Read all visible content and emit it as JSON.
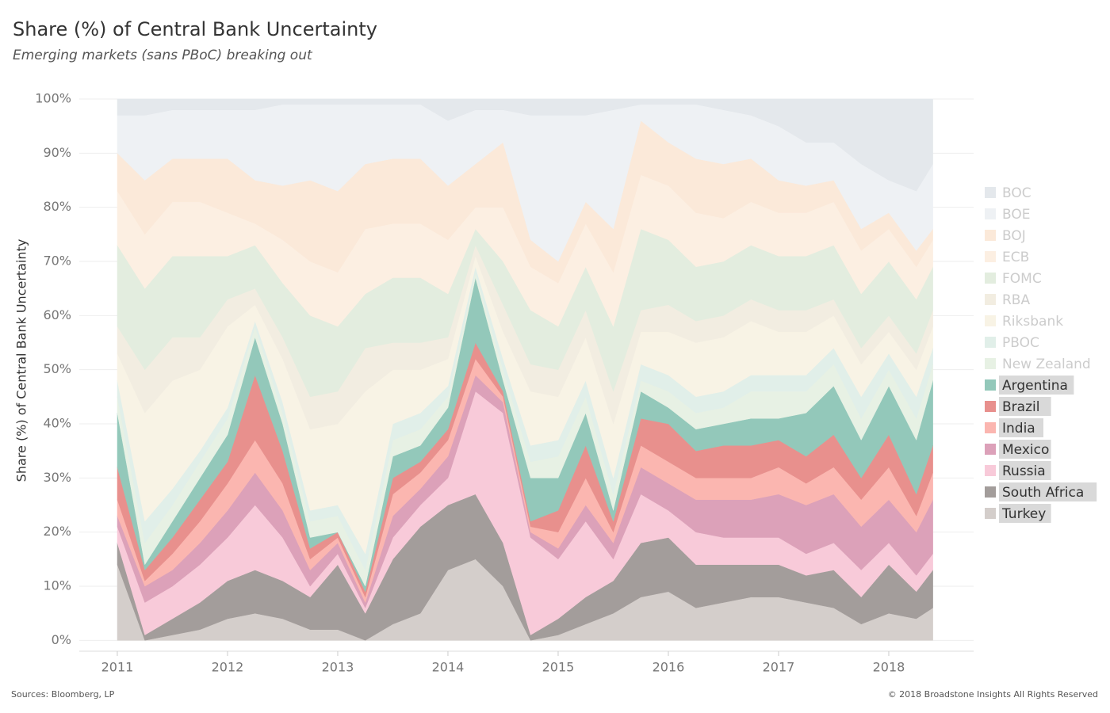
{
  "chart_data": {
    "type": "stacked_area",
    "title": "Share (%) of Central Bank Uncertainty",
    "subtitle": "Emerging markets (sans PBoC) breaking out",
    "y_label": "Share (%) of Central Bank Uncertainty",
    "source": "Sources: Bloomberg, LP",
    "copyright": "© 2018 Broadstone Insights All Rights Reserved",
    "x": [
      2011,
      2011.25,
      2011.5,
      2011.75,
      2012,
      2012.25,
      2012.5,
      2012.75,
      2013,
      2013.25,
      2013.5,
      2013.75,
      2014,
      2014.25,
      2014.5,
      2014.75,
      2015,
      2015.25,
      2015.5,
      2015.75,
      2016,
      2016.25,
      2016.5,
      2016.75,
      2017,
      2017.25,
      2017.5,
      2017.75,
      2018,
      2018.25,
      2018.4
    ],
    "xlim": [
      2010.655,
      2018.77
    ],
    "xticks": [
      2011,
      2012,
      2013,
      2014,
      2015,
      2016,
      2017,
      2018
    ],
    "ylim": [
      -2,
      100
    ],
    "yticks": [
      {
        "value": 0,
        "label": "0%"
      },
      {
        "value": 10,
        "label": "10%"
      },
      {
        "value": 20,
        "label": "20%"
      },
      {
        "value": 30,
        "label": "30%"
      },
      {
        "value": 40,
        "label": "40%"
      },
      {
        "value": 50,
        "label": "50%"
      },
      {
        "value": 60,
        "label": "60%"
      },
      {
        "value": 70,
        "label": "70%"
      },
      {
        "value": 80,
        "label": "80%"
      },
      {
        "value": 90,
        "label": "90%"
      },
      {
        "value": 100,
        "label": "100%"
      }
    ],
    "grid": true,
    "legend": "right",
    "series": [
      {
        "name": "BOC",
        "color": "#e4e8ec",
        "values": [
          3,
          3,
          2,
          2,
          2,
          2,
          1,
          1,
          1,
          1,
          1,
          1,
          4,
          2,
          2,
          3,
          3,
          3,
          2,
          1,
          1,
          1,
          2,
          3,
          5,
          8,
          8,
          12,
          15,
          17,
          12
        ]
      },
      {
        "name": "BOE",
        "color": "#eef1f4",
        "values": [
          7,
          12,
          9,
          9,
          9,
          13,
          15,
          14,
          16,
          11,
          10,
          10,
          12,
          10,
          6,
          23,
          27,
          16,
          22,
          3,
          7,
          10,
          10,
          8,
          10,
          8,
          7,
          12,
          6,
          11,
          12
        ]
      },
      {
        "name": "BOJ",
        "color": "#fbe9d9",
        "values": [
          7,
          10,
          8,
          8,
          10,
          8,
          10,
          15,
          15,
          12,
          12,
          12,
          10,
          8,
          12,
          5,
          4,
          4,
          8,
          10,
          8,
          10,
          10,
          8,
          6,
          5,
          4,
          4,
          3,
          3,
          2
        ]
      },
      {
        "name": "ECB",
        "color": "#fcefe2",
        "values": [
          10,
          10,
          10,
          10,
          8,
          4,
          8,
          10,
          10,
          12,
          10,
          10,
          10,
          4,
          10,
          8,
          8,
          8,
          10,
          10,
          10,
          10,
          8,
          8,
          8,
          8,
          8,
          8,
          6,
          6,
          5
        ]
      },
      {
        "name": "FOMC",
        "color": "#e3eddf",
        "values": [
          15,
          15,
          15,
          15,
          8,
          8,
          10,
          15,
          12,
          10,
          12,
          12,
          8,
          3,
          8,
          10,
          8,
          8,
          12,
          15,
          12,
          10,
          10,
          10,
          10,
          10,
          10,
          10,
          10,
          10,
          8
        ]
      },
      {
        "name": "RBA",
        "color": "#f2ede1",
        "values": [
          5,
          8,
          8,
          6,
          5,
          3,
          4,
          6,
          6,
          8,
          5,
          5,
          4,
          2,
          5,
          5,
          5,
          5,
          6,
          4,
          5,
          4,
          4,
          4,
          4,
          4,
          3,
          3,
          3,
          3,
          3
        ]
      },
      {
        "name": "Riksbank",
        "color": "#f8f3e5",
        "values": [
          5,
          20,
          20,
          15,
          15,
          3,
          8,
          15,
          15,
          30,
          10,
          8,
          5,
          2,
          5,
          10,
          8,
          8,
          10,
          6,
          8,
          10,
          10,
          10,
          8,
          8,
          6,
          6,
          4,
          5,
          4
        ]
      },
      {
        "name": "PBOC",
        "color": "#e1efe9",
        "values": [
          3,
          4,
          3,
          2,
          2,
          1,
          2,
          2,
          2,
          3,
          3,
          3,
          2,
          1,
          2,
          3,
          3,
          3,
          3,
          3,
          3,
          3,
          3,
          3,
          3,
          3,
          3,
          4,
          3,
          4,
          3
        ]
      },
      {
        "name": "New Zealand",
        "color": "#e7f1e4",
        "values": [
          3,
          4,
          3,
          3,
          3,
          2,
          2,
          3,
          3,
          3,
          3,
          3,
          2,
          1,
          2,
          3,
          4,
          3,
          3,
          2,
          3,
          3,
          3,
          5,
          5,
          4,
          4,
          4,
          3,
          4,
          3
        ]
      },
      {
        "name": "Argentina",
        "color": "#93c8ba",
        "values": [
          10,
          1,
          3,
          4,
          5,
          7,
          5,
          2,
          0,
          1,
          4,
          3,
          4,
          12,
          2,
          8,
          6,
          6,
          2,
          5,
          3,
          4,
          4,
          5,
          4,
          8,
          9,
          7,
          9,
          10,
          12
        ]
      },
      {
        "name": "Brazil",
        "color": "#e8908d",
        "values": [
          6,
          2,
          3,
          4,
          4,
          12,
          6,
          2,
          1,
          1,
          3,
          2,
          2,
          3,
          1,
          1,
          4,
          6,
          2,
          5,
          7,
          5,
          6,
          6,
          5,
          5,
          6,
          4,
          6,
          4,
          5
        ]
      },
      {
        "name": "India",
        "color": "#fbb6b0",
        "values": [
          3,
          1,
          3,
          4,
          5,
          6,
          5,
          2,
          1,
          1,
          4,
          3,
          3,
          3,
          1,
          1,
          3,
          5,
          2,
          4,
          4,
          4,
          4,
          4,
          5,
          4,
          5,
          5,
          6,
          3,
          5
        ]
      },
      {
        "name": "Mexico",
        "color": "#dca1b9",
        "values": [
          2,
          3,
          3,
          4,
          5,
          6,
          5,
          3,
          2,
          1,
          4,
          3,
          4,
          3,
          2,
          1,
          2,
          3,
          3,
          5,
          5,
          6,
          7,
          7,
          8,
          9,
          9,
          8,
          8,
          8,
          10
        ]
      },
      {
        "name": "Russia",
        "color": "#f8cad9",
        "values": [
          3,
          6,
          6,
          7,
          8,
          12,
          8,
          2,
          2,
          1,
          4,
          4,
          5,
          19,
          24,
          18,
          11,
          14,
          4,
          9,
          5,
          6,
          5,
          5,
          5,
          4,
          5,
          5,
          4,
          3,
          3
        ]
      },
      {
        "name": "South Africa",
        "color": "#a39d9b",
        "values": [
          4,
          1,
          3,
          5,
          7,
          8,
          7,
          6,
          12,
          5,
          12,
          16,
          12,
          12,
          8,
          1,
          3,
          5,
          6,
          10,
          10,
          8,
          7,
          6,
          6,
          5,
          7,
          5,
          9,
          5,
          7
        ]
      },
      {
        "name": "Turkey",
        "color": "#d4cecb",
        "values": [
          14,
          0,
          1,
          2,
          4,
          5,
          4,
          2,
          2,
          0,
          3,
          5,
          13,
          15,
          10,
          0,
          1,
          3,
          5,
          8,
          9,
          6,
          7,
          8,
          8,
          7,
          6,
          3,
          5,
          4,
          6
        ]
      }
    ],
    "legend_highlight": [
      "Argentina",
      "Brazil",
      "India",
      "Mexico",
      "Russia",
      "South Africa",
      "Turkey"
    ]
  }
}
